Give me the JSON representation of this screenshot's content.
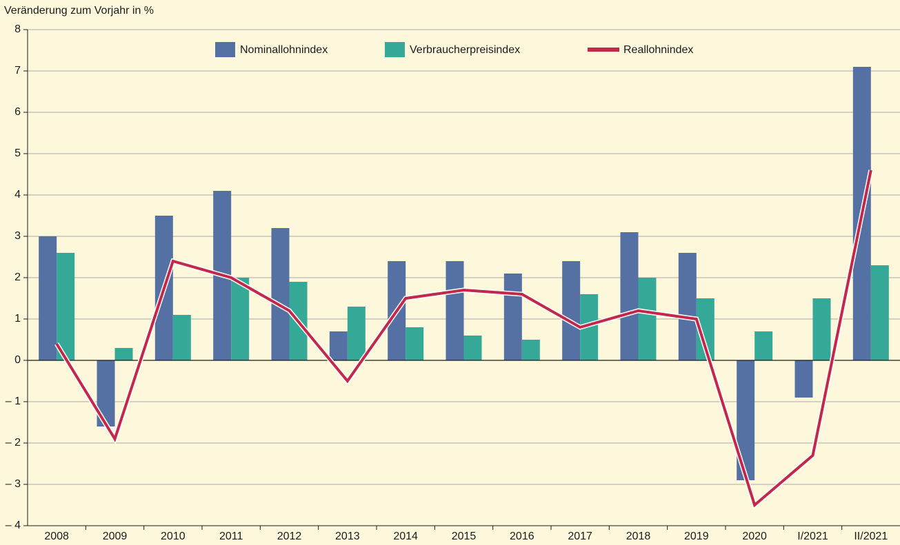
{
  "chart_data": {
    "type": "bar",
    "y_axis_label": "Veränderung zum Vorjahr in %",
    "categories": [
      "2008",
      "2009",
      "2010",
      "2011",
      "2012",
      "2013",
      "2014",
      "2015",
      "2016",
      "2017",
      "2018",
      "2019",
      "2020",
      "I/2021",
      "II/2021"
    ],
    "series": [
      {
        "name": "Nominallohnindex",
        "type": "bar",
        "color": "#5571a3",
        "values": [
          3.0,
          -1.6,
          3.5,
          4.1,
          3.2,
          0.7,
          2.4,
          2.4,
          2.1,
          2.4,
          3.1,
          2.6,
          -2.9,
          -0.9,
          7.1
        ]
      },
      {
        "name": "Verbraucherpreisindex",
        "type": "bar",
        "color": "#36a897",
        "values": [
          2.6,
          0.3,
          1.1,
          2.0,
          1.9,
          1.3,
          0.8,
          0.6,
          0.5,
          1.6,
          2.0,
          1.5,
          0.7,
          1.5,
          2.3
        ]
      },
      {
        "name": "Reallohnindex",
        "type": "line",
        "color": "#c1284a",
        "values": [
          0.4,
          -1.9,
          2.4,
          2.0,
          1.2,
          -0.5,
          1.5,
          1.7,
          1.6,
          0.8,
          1.2,
          1.0,
          -3.5,
          -2.3,
          4.6
        ]
      }
    ],
    "ylim": [
      -4,
      8
    ],
    "yticks": [
      {
        "value": -4,
        "label": "– 4"
      },
      {
        "value": -3,
        "label": "– 3"
      },
      {
        "value": -2,
        "label": "– 2"
      },
      {
        "value": -1,
        "label": "– 1"
      },
      0,
      1,
      2,
      3,
      4,
      5,
      6,
      7,
      8
    ],
    "grid": true,
    "legend": "top"
  }
}
